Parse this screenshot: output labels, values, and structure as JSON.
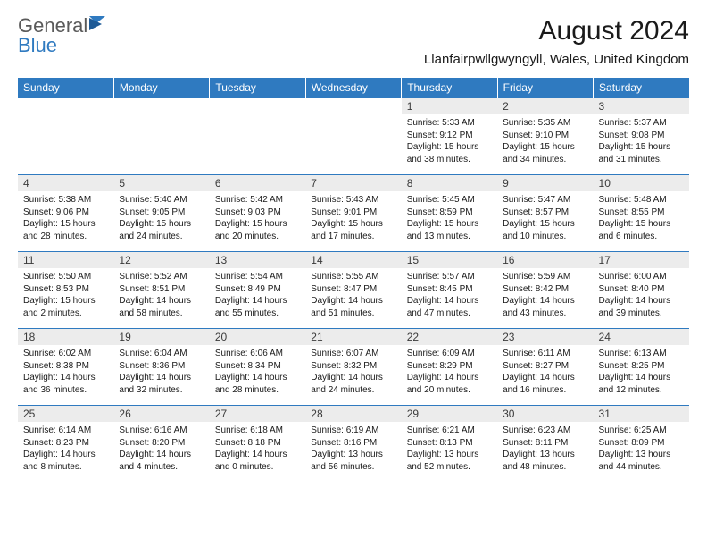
{
  "brand": {
    "part1": "General",
    "part2": "Blue"
  },
  "accent_color": "#2f7ac0",
  "header_bg": "#2f7ac0",
  "daynum_bg": "#ececec",
  "month_title": "August 2024",
  "location": "Llanfairpwllgwyngyll, Wales, United Kingdom",
  "day_headers": [
    "Sunday",
    "Monday",
    "Tuesday",
    "Wednesday",
    "Thursday",
    "Friday",
    "Saturday"
  ],
  "weeks": [
    [
      {
        "n": "",
        "sr": "",
        "ss": "",
        "dl": ""
      },
      {
        "n": "",
        "sr": "",
        "ss": "",
        "dl": ""
      },
      {
        "n": "",
        "sr": "",
        "ss": "",
        "dl": ""
      },
      {
        "n": "",
        "sr": "",
        "ss": "",
        "dl": ""
      },
      {
        "n": "1",
        "sr": "Sunrise: 5:33 AM",
        "ss": "Sunset: 9:12 PM",
        "dl": "Daylight: 15 hours and 38 minutes."
      },
      {
        "n": "2",
        "sr": "Sunrise: 5:35 AM",
        "ss": "Sunset: 9:10 PM",
        "dl": "Daylight: 15 hours and 34 minutes."
      },
      {
        "n": "3",
        "sr": "Sunrise: 5:37 AM",
        "ss": "Sunset: 9:08 PM",
        "dl": "Daylight: 15 hours and 31 minutes."
      }
    ],
    [
      {
        "n": "4",
        "sr": "Sunrise: 5:38 AM",
        "ss": "Sunset: 9:06 PM",
        "dl": "Daylight: 15 hours and 28 minutes."
      },
      {
        "n": "5",
        "sr": "Sunrise: 5:40 AM",
        "ss": "Sunset: 9:05 PM",
        "dl": "Daylight: 15 hours and 24 minutes."
      },
      {
        "n": "6",
        "sr": "Sunrise: 5:42 AM",
        "ss": "Sunset: 9:03 PM",
        "dl": "Daylight: 15 hours and 20 minutes."
      },
      {
        "n": "7",
        "sr": "Sunrise: 5:43 AM",
        "ss": "Sunset: 9:01 PM",
        "dl": "Daylight: 15 hours and 17 minutes."
      },
      {
        "n": "8",
        "sr": "Sunrise: 5:45 AM",
        "ss": "Sunset: 8:59 PM",
        "dl": "Daylight: 15 hours and 13 minutes."
      },
      {
        "n": "9",
        "sr": "Sunrise: 5:47 AM",
        "ss": "Sunset: 8:57 PM",
        "dl": "Daylight: 15 hours and 10 minutes."
      },
      {
        "n": "10",
        "sr": "Sunrise: 5:48 AM",
        "ss": "Sunset: 8:55 PM",
        "dl": "Daylight: 15 hours and 6 minutes."
      }
    ],
    [
      {
        "n": "11",
        "sr": "Sunrise: 5:50 AM",
        "ss": "Sunset: 8:53 PM",
        "dl": "Daylight: 15 hours and 2 minutes."
      },
      {
        "n": "12",
        "sr": "Sunrise: 5:52 AM",
        "ss": "Sunset: 8:51 PM",
        "dl": "Daylight: 14 hours and 58 minutes."
      },
      {
        "n": "13",
        "sr": "Sunrise: 5:54 AM",
        "ss": "Sunset: 8:49 PM",
        "dl": "Daylight: 14 hours and 55 minutes."
      },
      {
        "n": "14",
        "sr": "Sunrise: 5:55 AM",
        "ss": "Sunset: 8:47 PM",
        "dl": "Daylight: 14 hours and 51 minutes."
      },
      {
        "n": "15",
        "sr": "Sunrise: 5:57 AM",
        "ss": "Sunset: 8:45 PM",
        "dl": "Daylight: 14 hours and 47 minutes."
      },
      {
        "n": "16",
        "sr": "Sunrise: 5:59 AM",
        "ss": "Sunset: 8:42 PM",
        "dl": "Daylight: 14 hours and 43 minutes."
      },
      {
        "n": "17",
        "sr": "Sunrise: 6:00 AM",
        "ss": "Sunset: 8:40 PM",
        "dl": "Daylight: 14 hours and 39 minutes."
      }
    ],
    [
      {
        "n": "18",
        "sr": "Sunrise: 6:02 AM",
        "ss": "Sunset: 8:38 PM",
        "dl": "Daylight: 14 hours and 36 minutes."
      },
      {
        "n": "19",
        "sr": "Sunrise: 6:04 AM",
        "ss": "Sunset: 8:36 PM",
        "dl": "Daylight: 14 hours and 32 minutes."
      },
      {
        "n": "20",
        "sr": "Sunrise: 6:06 AM",
        "ss": "Sunset: 8:34 PM",
        "dl": "Daylight: 14 hours and 28 minutes."
      },
      {
        "n": "21",
        "sr": "Sunrise: 6:07 AM",
        "ss": "Sunset: 8:32 PM",
        "dl": "Daylight: 14 hours and 24 minutes."
      },
      {
        "n": "22",
        "sr": "Sunrise: 6:09 AM",
        "ss": "Sunset: 8:29 PM",
        "dl": "Daylight: 14 hours and 20 minutes."
      },
      {
        "n": "23",
        "sr": "Sunrise: 6:11 AM",
        "ss": "Sunset: 8:27 PM",
        "dl": "Daylight: 14 hours and 16 minutes."
      },
      {
        "n": "24",
        "sr": "Sunrise: 6:13 AM",
        "ss": "Sunset: 8:25 PM",
        "dl": "Daylight: 14 hours and 12 minutes."
      }
    ],
    [
      {
        "n": "25",
        "sr": "Sunrise: 6:14 AM",
        "ss": "Sunset: 8:23 PM",
        "dl": "Daylight: 14 hours and 8 minutes."
      },
      {
        "n": "26",
        "sr": "Sunrise: 6:16 AM",
        "ss": "Sunset: 8:20 PM",
        "dl": "Daylight: 14 hours and 4 minutes."
      },
      {
        "n": "27",
        "sr": "Sunrise: 6:18 AM",
        "ss": "Sunset: 8:18 PM",
        "dl": "Daylight: 14 hours and 0 minutes."
      },
      {
        "n": "28",
        "sr": "Sunrise: 6:19 AM",
        "ss": "Sunset: 8:16 PM",
        "dl": "Daylight: 13 hours and 56 minutes."
      },
      {
        "n": "29",
        "sr": "Sunrise: 6:21 AM",
        "ss": "Sunset: 8:13 PM",
        "dl": "Daylight: 13 hours and 52 minutes."
      },
      {
        "n": "30",
        "sr": "Sunrise: 6:23 AM",
        "ss": "Sunset: 8:11 PM",
        "dl": "Daylight: 13 hours and 48 minutes."
      },
      {
        "n": "31",
        "sr": "Sunrise: 6:25 AM",
        "ss": "Sunset: 8:09 PM",
        "dl": "Daylight: 13 hours and 44 minutes."
      }
    ]
  ]
}
